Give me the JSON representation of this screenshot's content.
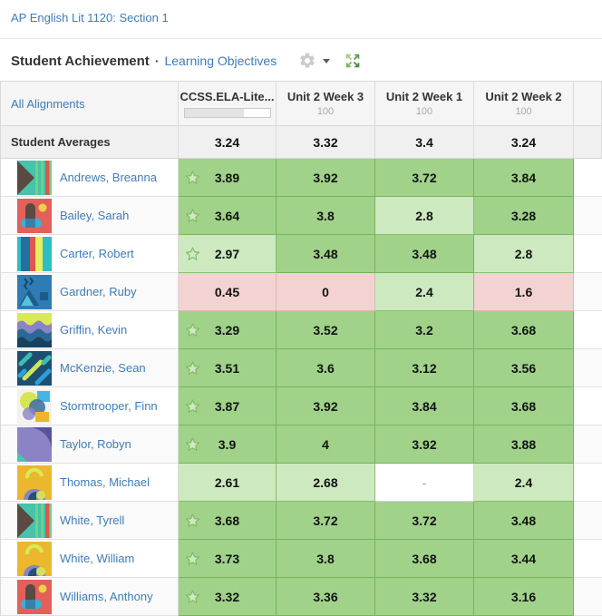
{
  "header": {
    "course_link": "AP English Lit 1120: Section 1",
    "title": "Student Achievement",
    "separator": "·",
    "subtitle_link": "Learning Objectives"
  },
  "icons": {
    "gear": "gear-icon (cog, light gray)",
    "caret": "caret-down-icon",
    "expand": "expand-arrows-icon (4 green outward arrows)",
    "star": "mastery-star-icon (green outlined star)"
  },
  "colors": {
    "accent_blue": "#3e7cbe",
    "score_high_bg": "#a0d28a",
    "score_mid_bg": "#cde9c0",
    "score_low_bg": "#f2d3d1",
    "score_empty_bg": "#ffffff",
    "header_bg": "#f5f5f5",
    "averages_bg": "#f0f0f0"
  },
  "table": {
    "columns": [
      {
        "label": "All Alignments"
      },
      {
        "label": "CCSS.ELA-Lite...",
        "progress_pct": 70
      },
      {
        "label": "Unit 2 Week 3",
        "sub": "100"
      },
      {
        "label": "Unit 2 Week 1",
        "sub": "100"
      },
      {
        "label": "Unit 2 Week 2",
        "sub": "100"
      }
    ],
    "averages": {
      "label": "Student Averages",
      "values": [
        "3.24",
        "3.32",
        "3.4",
        "3.24"
      ]
    },
    "students": [
      {
        "name": "Andrews, Breanna",
        "avatar": "tri-stripes",
        "star": true,
        "scores": [
          {
            "v": "3.89",
            "level": "high"
          },
          {
            "v": "3.92",
            "level": "high"
          },
          {
            "v": "3.72",
            "level": "high"
          },
          {
            "v": "3.84",
            "level": "high"
          }
        ]
      },
      {
        "name": "Bailey, Sarah",
        "avatar": "coral-shapes",
        "star": true,
        "scores": [
          {
            "v": "3.64",
            "level": "high"
          },
          {
            "v": "3.8",
            "level": "high"
          },
          {
            "v": "2.8",
            "level": "mid"
          },
          {
            "v": "3.28",
            "level": "high"
          }
        ]
      },
      {
        "name": "Carter, Robert",
        "avatar": "teal-bars",
        "star": true,
        "scores": [
          {
            "v": "2.97",
            "level": "mid"
          },
          {
            "v": "3.48",
            "level": "high"
          },
          {
            "v": "3.48",
            "level": "high"
          },
          {
            "v": "2.8",
            "level": "mid"
          }
        ]
      },
      {
        "name": "Gardner, Ruby",
        "avatar": "blue-geo",
        "star": false,
        "scores": [
          {
            "v": "0.45",
            "level": "low"
          },
          {
            "v": "0",
            "level": "low"
          },
          {
            "v": "2.4",
            "level": "mid"
          },
          {
            "v": "1.6",
            "level": "low"
          }
        ]
      },
      {
        "name": "Griffin, Kevin",
        "avatar": "waves",
        "star": true,
        "scores": [
          {
            "v": "3.29",
            "level": "high"
          },
          {
            "v": "3.52",
            "level": "high"
          },
          {
            "v": "3.2",
            "level": "high"
          },
          {
            "v": "3.68",
            "level": "high"
          }
        ]
      },
      {
        "name": "McKenzie, Sean",
        "avatar": "navy-diagonal",
        "star": true,
        "scores": [
          {
            "v": "3.51",
            "level": "high"
          },
          {
            "v": "3.6",
            "level": "high"
          },
          {
            "v": "3.12",
            "level": "high"
          },
          {
            "v": "3.56",
            "level": "high"
          }
        ]
      },
      {
        "name": "Stormtrooper, Finn",
        "avatar": "light-circles",
        "star": true,
        "scores": [
          {
            "v": "3.87",
            "level": "high"
          },
          {
            "v": "3.92",
            "level": "high"
          },
          {
            "v": "3.84",
            "level": "high"
          },
          {
            "v": "3.68",
            "level": "high"
          }
        ]
      },
      {
        "name": "Taylor, Robyn",
        "avatar": "purple-quarter",
        "star": true,
        "scores": [
          {
            "v": "3.9",
            "level": "high"
          },
          {
            "v": "4",
            "level": "high"
          },
          {
            "v": "3.92",
            "level": "high"
          },
          {
            "v": "3.88",
            "level": "high"
          }
        ]
      },
      {
        "name": "Thomas, Michael",
        "avatar": "amber-figure",
        "star": false,
        "scores": [
          {
            "v": "2.61",
            "level": "mid"
          },
          {
            "v": "2.68",
            "level": "mid"
          },
          {
            "v": "-",
            "level": "none"
          },
          {
            "v": "2.4",
            "level": "mid"
          }
        ]
      },
      {
        "name": "White, Tyrell",
        "avatar": "tri-stripes",
        "star": true,
        "scores": [
          {
            "v": "3.68",
            "level": "high"
          },
          {
            "v": "3.72",
            "level": "high"
          },
          {
            "v": "3.72",
            "level": "high"
          },
          {
            "v": "3.48",
            "level": "high"
          }
        ]
      },
      {
        "name": "White, William",
        "avatar": "amber-figure",
        "star": true,
        "scores": [
          {
            "v": "3.73",
            "level": "high"
          },
          {
            "v": "3.8",
            "level": "high"
          },
          {
            "v": "3.68",
            "level": "high"
          },
          {
            "v": "3.44",
            "level": "high"
          }
        ]
      },
      {
        "name": "Williams, Anthony",
        "avatar": "coral-shapes",
        "star": true,
        "scores": [
          {
            "v": "3.32",
            "level": "high"
          },
          {
            "v": "3.36",
            "level": "high"
          },
          {
            "v": "3.32",
            "level": "high"
          },
          {
            "v": "3.16",
            "level": "high"
          }
        ]
      }
    ]
  }
}
